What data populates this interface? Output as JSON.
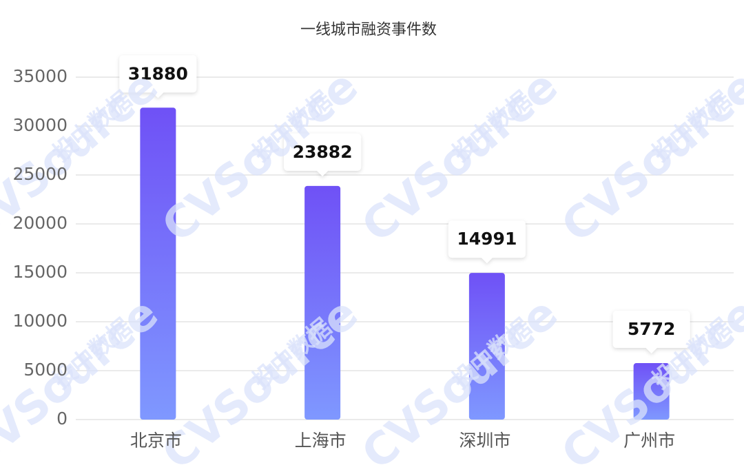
{
  "chart_data": {
    "type": "bar",
    "title": "一线城市融资事件数",
    "categories": [
      "北京市",
      "上海市",
      "深圳市",
      "广州市"
    ],
    "values": [
      31880,
      23882,
      14991,
      5772
    ],
    "color": "#6f51f6",
    "ylim": [
      0,
      35000
    ],
    "yticks": [
      0,
      5000,
      10000,
      15000,
      20000,
      25000,
      30000,
      35000
    ],
    "grid": true,
    "watermark": "CVSource",
    "watermark_sub": "投中数据"
  }
}
